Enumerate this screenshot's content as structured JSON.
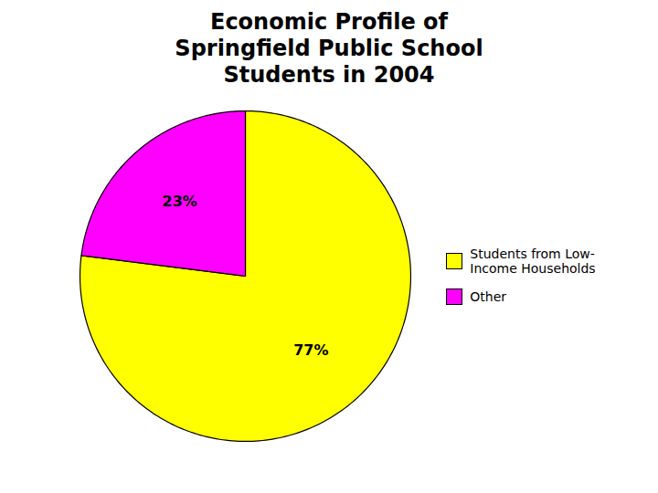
{
  "chart_data": {
    "type": "pie",
    "title": "Economic Profile of\nSpringfield Public School\nStudents in 2004",
    "categories": [
      "Students from Low-\nIncome Households",
      "Other"
    ],
    "values": [
      77,
      23
    ],
    "value_labels": [
      "77%",
      "23%"
    ],
    "colors": [
      "#FFFF00",
      "#FF00FF"
    ],
    "data_labels": true,
    "legend": "right"
  }
}
